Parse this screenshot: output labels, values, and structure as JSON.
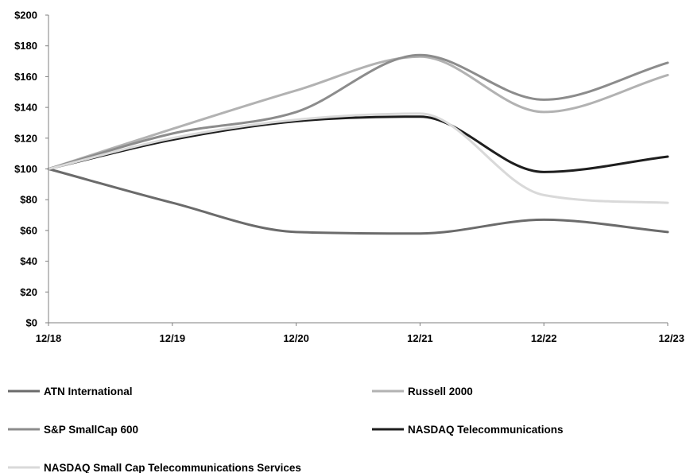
{
  "chart_data": {
    "type": "line",
    "title": "",
    "xlabel": "",
    "ylabel": "",
    "categories": [
      "12/18",
      "12/19",
      "12/20",
      "12/21",
      "12/22",
      "12/23"
    ],
    "y_tick_labels": [
      "$0",
      "$20",
      "$40",
      "$60",
      "$80",
      "$100",
      "$120",
      "$140",
      "$160",
      "$180",
      "$200"
    ],
    "y_ticks": [
      0,
      20,
      40,
      60,
      80,
      100,
      120,
      140,
      160,
      180,
      200
    ],
    "ylim": [
      0,
      200
    ],
    "grid": false,
    "legend_position": "bottom",
    "series": [
      {
        "name": "ATN International",
        "color": "#6b6b6b",
        "values": [
          100,
          78,
          59,
          58,
          67,
          59
        ]
      },
      {
        "name": "Russell 2000",
        "color": "#b2b2b2",
        "values": [
          100,
          126,
          151,
          173,
          137,
          161
        ]
      },
      {
        "name": "S&P SmallCap 600",
        "color": "#8c8c8c",
        "values": [
          100,
          123,
          137,
          174,
          145,
          169
        ]
      },
      {
        "name": "NASDAQ Telecommunications",
        "color": "#1e1e1e",
        "values": [
          100,
          119,
          131,
          134,
          98,
          108
        ]
      },
      {
        "name": "NASDAQ Small Cap Telecommunications Services",
        "color": "#d9d9d9",
        "values": [
          100,
          120,
          132,
          136,
          83,
          78
        ]
      }
    ]
  }
}
